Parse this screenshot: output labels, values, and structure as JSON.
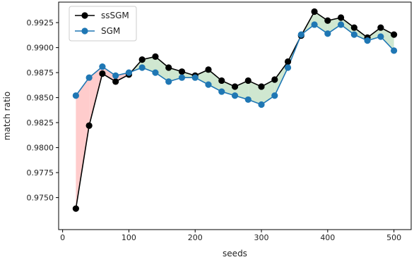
{
  "chart_data": {
    "type": "line",
    "title": "",
    "xlabel": "seeds",
    "ylabel": "match ratio",
    "xlim": [
      -6,
      526
    ],
    "ylim": [
      0.9718,
      0.99455
    ],
    "xticks": [
      0,
      100,
      200,
      300,
      400,
      500
    ],
    "yticks": [
      0.975,
      0.9775,
      0.98,
      0.9825,
      0.985,
      0.9875,
      0.99,
      0.9925
    ],
    "ytick_labels": [
      "0.9750",
      "0.9775",
      "0.9800",
      "0.9825",
      "0.9850",
      "0.9875",
      "0.9900",
      "0.9925"
    ],
    "xtick_labels": [
      "0",
      "100",
      "200",
      "300",
      "400",
      "500"
    ],
    "legend_position": "top-left",
    "grid": false,
    "x": [
      20,
      40,
      60,
      80,
      100,
      120,
      140,
      160,
      180,
      200,
      220,
      240,
      260,
      280,
      300,
      320,
      340,
      360,
      380,
      400,
      420,
      440,
      460,
      480,
      500
    ],
    "series": [
      {
        "name": "ssSGM",
        "color": "#000000",
        "values": [
          0.9739,
          0.9822,
          0.9874,
          0.9866,
          0.9873,
          0.9888,
          0.9891,
          0.988,
          0.9876,
          0.9872,
          0.9878,
          0.9867,
          0.9861,
          0.9867,
          0.9861,
          0.9868,
          0.9886,
          0.9912,
          0.9936,
          0.9927,
          0.993,
          0.992,
          0.991,
          0.992,
          0.9913
        ]
      },
      {
        "name": "SGM",
        "color": "#1f77b4",
        "values": [
          0.9852,
          0.987,
          0.9881,
          0.9872,
          0.9875,
          0.988,
          0.9875,
          0.9866,
          0.987,
          0.987,
          0.9863,
          0.9856,
          0.9852,
          0.9848,
          0.9843,
          0.9852,
          0.988,
          0.9913,
          0.9923,
          0.9914,
          0.9923,
          0.9913,
          0.9907,
          0.9911,
          0.9897
        ]
      }
    ],
    "fill_colors": {
      "ssSGM_higher": "#cfe7d0",
      "SGM_higher": "#ffcccc"
    }
  }
}
